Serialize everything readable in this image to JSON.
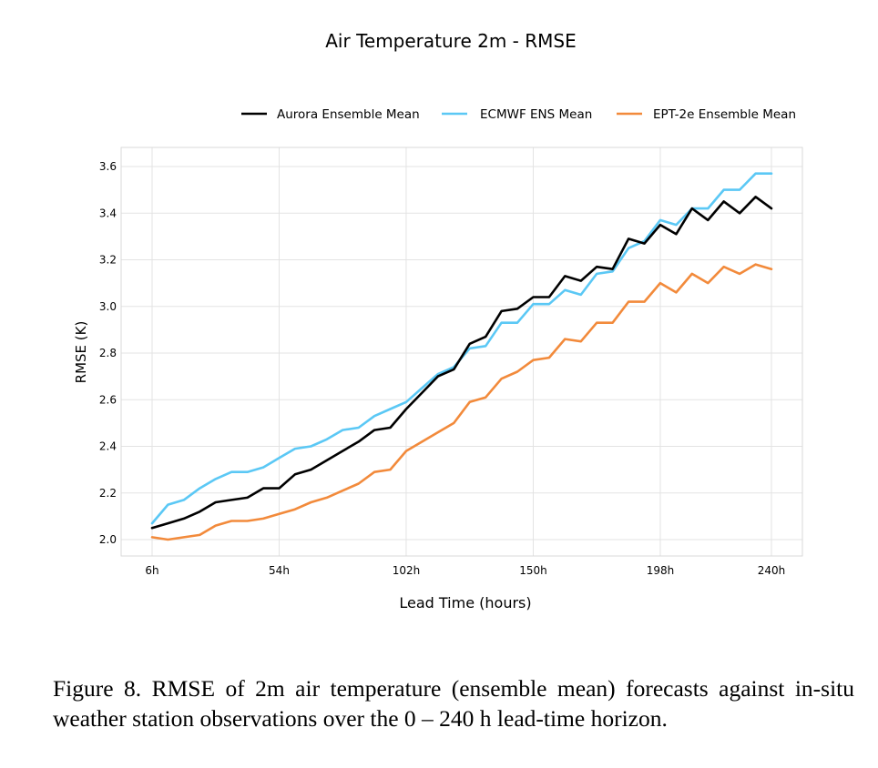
{
  "chart_data": {
    "type": "line",
    "title": "Air Temperature 2m - RMSE",
    "xlabel": "Lead Time (hours)",
    "ylabel": "RMSE (K)",
    "xlim": [
      0,
      246
    ],
    "ylim": [
      1.94,
      3.66
    ],
    "x_ticks": [
      {
        "value": 6,
        "label": "6h"
      },
      {
        "value": 54,
        "label": "54h"
      },
      {
        "value": 102,
        "label": "102h"
      },
      {
        "value": 150,
        "label": "150h"
      },
      {
        "value": 198,
        "label": "198h"
      },
      {
        "value": 240,
        "label": "240h"
      }
    ],
    "y_ticks": [
      {
        "value": 2.0,
        "label": "2.0"
      },
      {
        "value": 2.2,
        "label": "2.2"
      },
      {
        "value": 2.4,
        "label": "2.4"
      },
      {
        "value": 2.6,
        "label": "2.6"
      },
      {
        "value": 2.8,
        "label": "2.8"
      },
      {
        "value": 3.0,
        "label": "3.0"
      },
      {
        "value": 3.2,
        "label": "3.2"
      },
      {
        "value": 3.4,
        "label": "3.4"
      },
      {
        "value": 3.6,
        "label": "3.6"
      }
    ],
    "grid": true,
    "legend_position": "top-right",
    "x": [
      6,
      12,
      18,
      24,
      30,
      36,
      42,
      48,
      54,
      60,
      66,
      72,
      78,
      84,
      90,
      96,
      102,
      108,
      114,
      120,
      126,
      132,
      138,
      144,
      150,
      156,
      162,
      168,
      174,
      180,
      186,
      192,
      198,
      204,
      210,
      216,
      222,
      228,
      234,
      240
    ],
    "series": [
      {
        "name": "Aurora Ensemble Mean",
        "color": "#000000",
        "values": [
          2.05,
          2.07,
          2.09,
          2.12,
          2.16,
          2.17,
          2.18,
          2.22,
          2.22,
          2.28,
          2.3,
          2.34,
          2.38,
          2.42,
          2.47,
          2.48,
          2.56,
          2.63,
          2.7,
          2.73,
          2.84,
          2.87,
          2.98,
          2.99,
          3.04,
          3.04,
          3.13,
          3.11,
          3.17,
          3.16,
          3.29,
          3.27,
          3.35,
          3.31,
          3.42,
          3.37,
          3.45,
          3.4,
          3.47,
          3.42
        ]
      },
      {
        "name": "ECMWF ENS Mean",
        "color": "#5BC8F5",
        "values": [
          2.07,
          2.15,
          2.17,
          2.22,
          2.26,
          2.29,
          2.29,
          2.31,
          2.35,
          2.39,
          2.4,
          2.43,
          2.47,
          2.48,
          2.53,
          2.56,
          2.59,
          2.65,
          2.71,
          2.74,
          2.82,
          2.83,
          2.93,
          2.93,
          3.01,
          3.01,
          3.07,
          3.05,
          3.14,
          3.15,
          3.25,
          3.28,
          3.37,
          3.35,
          3.42,
          3.42,
          3.5,
          3.5,
          3.57,
          3.57
        ]
      },
      {
        "name": "EPT-2e Ensemble Mean",
        "color": "#F28A3B",
        "values": [
          2.01,
          2.0,
          2.01,
          2.02,
          2.06,
          2.08,
          2.08,
          2.09,
          2.11,
          2.13,
          2.16,
          2.18,
          2.21,
          2.24,
          2.29,
          2.3,
          2.38,
          2.42,
          2.46,
          2.5,
          2.59,
          2.61,
          2.69,
          2.72,
          2.77,
          2.78,
          2.86,
          2.85,
          2.93,
          2.93,
          3.02,
          3.02,
          3.1,
          3.06,
          3.14,
          3.1,
          3.17,
          3.14,
          3.18,
          3.16
        ]
      }
    ]
  },
  "caption": {
    "text": "Figure 8.  RMSE of 2m air temperature (ensemble mean) forecasts against in-situ weather station observations over the 0 – 240 h lead-time horizon."
  }
}
